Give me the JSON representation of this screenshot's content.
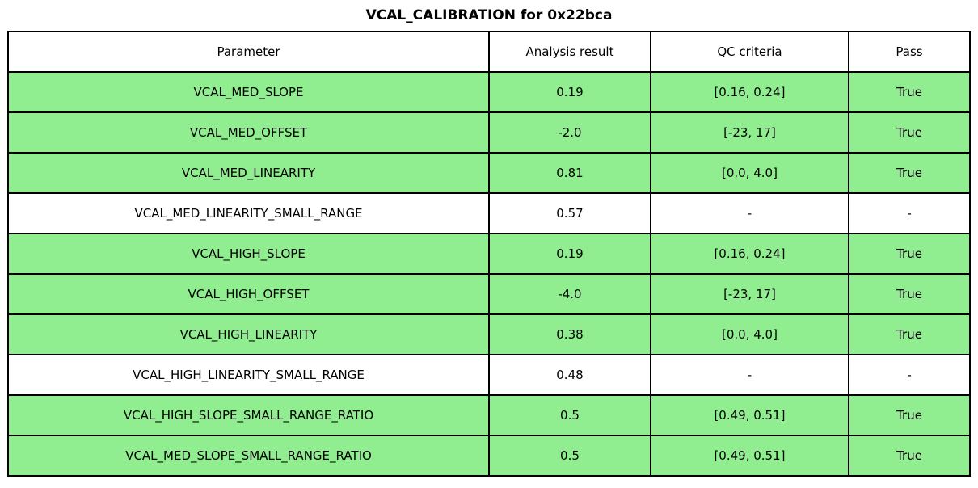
{
  "title": "VCAL_CALIBRATION for 0x22bca",
  "colors": {
    "pass_row_bg": "#90EE90",
    "border": "#000000"
  },
  "table": {
    "headers": [
      "Parameter",
      "Analysis result",
      "QC criteria",
      "Pass"
    ],
    "rows": [
      {
        "parameter": "VCAL_MED_SLOPE",
        "result": "0.19",
        "qc": "[0.16, 0.24]",
        "pass": "True",
        "highlight": true
      },
      {
        "parameter": "VCAL_MED_OFFSET",
        "result": "-2.0",
        "qc": "[-23, 17]",
        "pass": "True",
        "highlight": true
      },
      {
        "parameter": "VCAL_MED_LINEARITY",
        "result": "0.81",
        "qc": "[0.0, 4.0]",
        "pass": "True",
        "highlight": true
      },
      {
        "parameter": "VCAL_MED_LINEARITY_SMALL_RANGE",
        "result": "0.57",
        "qc": "-",
        "pass": "-",
        "highlight": false
      },
      {
        "parameter": "VCAL_HIGH_SLOPE",
        "result": "0.19",
        "qc": "[0.16, 0.24]",
        "pass": "True",
        "highlight": true
      },
      {
        "parameter": "VCAL_HIGH_OFFSET",
        "result": "-4.0",
        "qc": "[-23, 17]",
        "pass": "True",
        "highlight": true
      },
      {
        "parameter": "VCAL_HIGH_LINEARITY",
        "result": "0.38",
        "qc": "[0.0, 4.0]",
        "pass": "True",
        "highlight": true
      },
      {
        "parameter": "VCAL_HIGH_LINEARITY_SMALL_RANGE",
        "result": "0.48",
        "qc": "-",
        "pass": "-",
        "highlight": false
      },
      {
        "parameter": "VCAL_HIGH_SLOPE_SMALL_RANGE_RATIO",
        "result": "0.5",
        "qc": "[0.49, 0.51]",
        "pass": "True",
        "highlight": true
      },
      {
        "parameter": "VCAL_MED_SLOPE_SMALL_RANGE_RATIO",
        "result": "0.5",
        "qc": "[0.49, 0.51]",
        "pass": "True",
        "highlight": true
      }
    ]
  }
}
